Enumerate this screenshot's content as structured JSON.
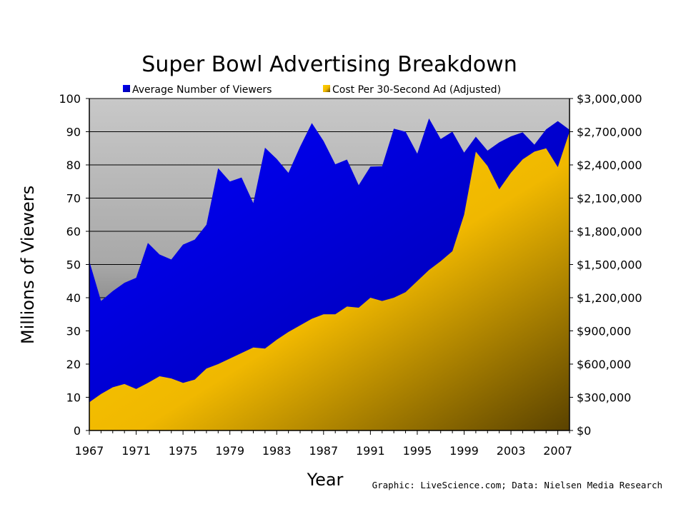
{
  "chart_data": {
    "type": "area",
    "title": "Super Bowl Advertising Breakdown",
    "xlabel": "Year",
    "ylabel": "Millions of Viewers",
    "credit": "Graphic: LiveScience.com; Data: Nielsen Media Research",
    "legend_position": "top",
    "grid": true,
    "x": [
      1967,
      1968,
      1969,
      1970,
      1971,
      1972,
      1973,
      1974,
      1975,
      1976,
      1977,
      1978,
      1979,
      1980,
      1981,
      1982,
      1983,
      1984,
      1985,
      1986,
      1987,
      1988,
      1989,
      1990,
      1991,
      1992,
      1993,
      1994,
      1995,
      1996,
      1997,
      1998,
      1999,
      2000,
      2001,
      2002,
      2003,
      2004,
      2005,
      2006,
      2007,
      2008
    ],
    "xlim": [
      1967,
      2008
    ],
    "x_ticks": [
      "1967",
      "1971",
      "1975",
      "1979",
      "1983",
      "1987",
      "1991",
      "1995",
      "1999",
      "2003",
      "2007"
    ],
    "y_left": {
      "lim": [
        0,
        100
      ],
      "ticks": [
        "0",
        "10",
        "20",
        "30",
        "40",
        "50",
        "60",
        "70",
        "80",
        "90",
        "100"
      ]
    },
    "y_right": {
      "lim": [
        0,
        3000000
      ],
      "ticks": [
        "$0",
        "$300,000",
        "$600,000",
        "$900,000",
        "$1,200,000",
        "$1,500,000",
        "$1,800,000",
        "$2,100,000",
        "$2,400,000",
        "$2,700,000",
        "$3,000,000"
      ]
    },
    "series": [
      {
        "name": "Average Number of Viewers",
        "axis": "left",
        "color": "#0000ee",
        "values": [
          51,
          39,
          42,
          44.5,
          46,
          56.5,
          53,
          51.5,
          56,
          57.5,
          62,
          79,
          75,
          76.2,
          68.5,
          85.2,
          81.8,
          77.6,
          85.5,
          92.6,
          87.2,
          80.2,
          81.6,
          73.9,
          79.5,
          79.6,
          90.9,
          90,
          83.4,
          94,
          87.8,
          90,
          83.7,
          88.5,
          84.3,
          86.8,
          88.6,
          89.8,
          86.1,
          90.7,
          93.2,
          90.6
        ]
      },
      {
        "name": "Cost Per 30-Second Ad (Adjusted)",
        "axis": "right",
        "color": "#ffcc00",
        "values": [
          255000,
          330000,
          390000,
          420000,
          375000,
          430000,
          490000,
          470000,
          430000,
          460000,
          560000,
          600000,
          650000,
          700000,
          750000,
          740000,
          820000,
          890000,
          950000,
          1010000,
          1050000,
          1050000,
          1120000,
          1110000,
          1200000,
          1170000,
          1200000,
          1250000,
          1350000,
          1450000,
          1530000,
          1620000,
          1950000,
          2520000,
          2390000,
          2180000,
          2330000,
          2450000,
          2520000,
          2550000,
          2380000,
          2700000
        ]
      }
    ]
  }
}
